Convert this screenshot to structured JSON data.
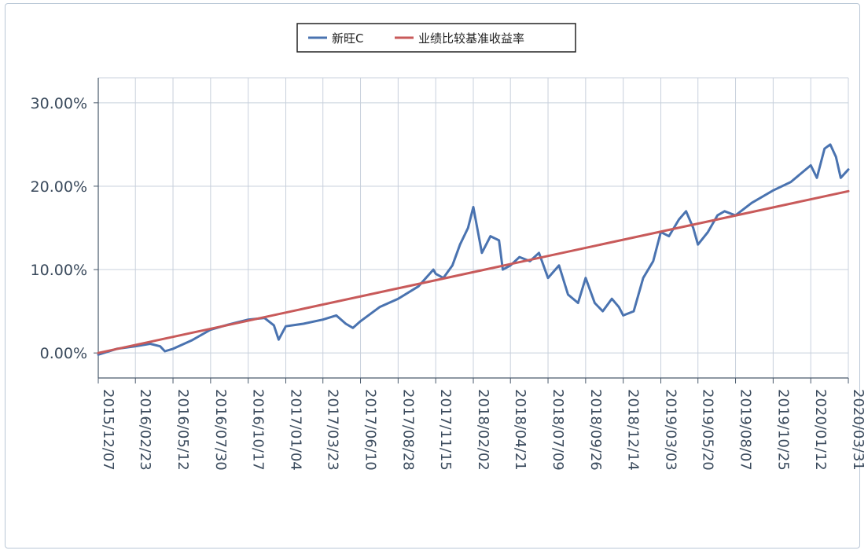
{
  "chart_data": {
    "type": "line",
    "title": "",
    "xlabel": "",
    "ylabel": "",
    "legend_position": "top-center",
    "grid": true,
    "ylim": [
      -3,
      33
    ],
    "y_ticks": [
      "0.00%",
      "10.00%",
      "20.00%",
      "30.00%"
    ],
    "y_tick_values": [
      0,
      10,
      20,
      30
    ],
    "x_ticks": [
      "2015/12/07",
      "2016/02/23",
      "2016/05/12",
      "2016/07/30",
      "2016/10/17",
      "2017/01/04",
      "2017/03/23",
      "2017/06/10",
      "2017/08/28",
      "2017/11/15",
      "2018/02/02",
      "2018/04/21",
      "2018/07/09",
      "2018/09/26",
      "2018/12/14",
      "2019/03/03",
      "2019/05/20",
      "2019/08/07",
      "2019/10/25",
      "2020/01/12",
      "2020/03/31"
    ],
    "series": [
      {
        "name": "新旺C",
        "color": "#4a73b0",
        "x": [
          "2015/12/07",
          "2016/01/15",
          "2016/02/23",
          "2016/03/25",
          "2016/04/15",
          "2016/04/25",
          "2016/05/12",
          "2016/06/20",
          "2016/07/30",
          "2016/09/05",
          "2016/10/17",
          "2016/11/20",
          "2016/12/10",
          "2016/12/20",
          "2017/01/04",
          "2017/02/10",
          "2017/03/23",
          "2017/04/20",
          "2017/05/10",
          "2017/05/25",
          "2017/06/10",
          "2017/07/20",
          "2017/08/28",
          "2017/10/10",
          "2017/11/10",
          "2017/11/15",
          "2017/12/01",
          "2017/12/20",
          "2018/01/05",
          "2018/01/22",
          "2018/02/02",
          "2018/02/20",
          "2018/03/10",
          "2018/03/28",
          "2018/04/05",
          "2018/04/21",
          "2018/05/10",
          "2018/06/01",
          "2018/06/20",
          "2018/07/09",
          "2018/08/01",
          "2018/08/20",
          "2018/09/10",
          "2018/09/26",
          "2018/10/15",
          "2018/11/01",
          "2018/11/20",
          "2018/12/05",
          "2018/12/14",
          "2019/01/05",
          "2019/01/25",
          "2019/02/15",
          "2019/03/03",
          "2019/03/20",
          "2019/04/10",
          "2019/04/25",
          "2019/05/10",
          "2019/05/20",
          "2019/06/10",
          "2019/06/30",
          "2019/07/15",
          "2019/08/07",
          "2019/09/10",
          "2019/10/25",
          "2019/12/01",
          "2020/01/12",
          "2020/01/25",
          "2020/02/10",
          "2020/02/22",
          "2020/03/05",
          "2020/03/15",
          "2020/03/31"
        ],
        "values": [
          -0.2,
          0.5,
          0.8,
          1.1,
          0.8,
          0.2,
          0.5,
          1.5,
          2.8,
          3.4,
          4.0,
          4.2,
          3.3,
          1.6,
          3.2,
          3.5,
          4.0,
          4.5,
          3.5,
          3.0,
          3.8,
          5.5,
          6.5,
          8.0,
          10.0,
          9.5,
          9.0,
          10.5,
          13.0,
          15.0,
          17.5,
          12.0,
          14.0,
          13.5,
          10.0,
          10.5,
          11.5,
          11.0,
          12.0,
          9.0,
          10.5,
          7.0,
          6.0,
          9.0,
          6.0,
          5.0,
          6.5,
          5.5,
          4.5,
          5.0,
          9.0,
          11.0,
          14.5,
          14.0,
          16.0,
          17.0,
          15.0,
          13.0,
          14.5,
          16.5,
          17.0,
          16.5,
          18.0,
          19.5,
          20.5,
          22.5,
          21.0,
          24.5,
          25.0,
          23.5,
          21.0,
          22.0
        ]
      },
      {
        "name": "业绩比较基准收益率",
        "color": "#c85a5a",
        "x": [
          "2015/12/07",
          "2020/03/31"
        ],
        "values": [
          0.0,
          19.4
        ]
      }
    ]
  }
}
